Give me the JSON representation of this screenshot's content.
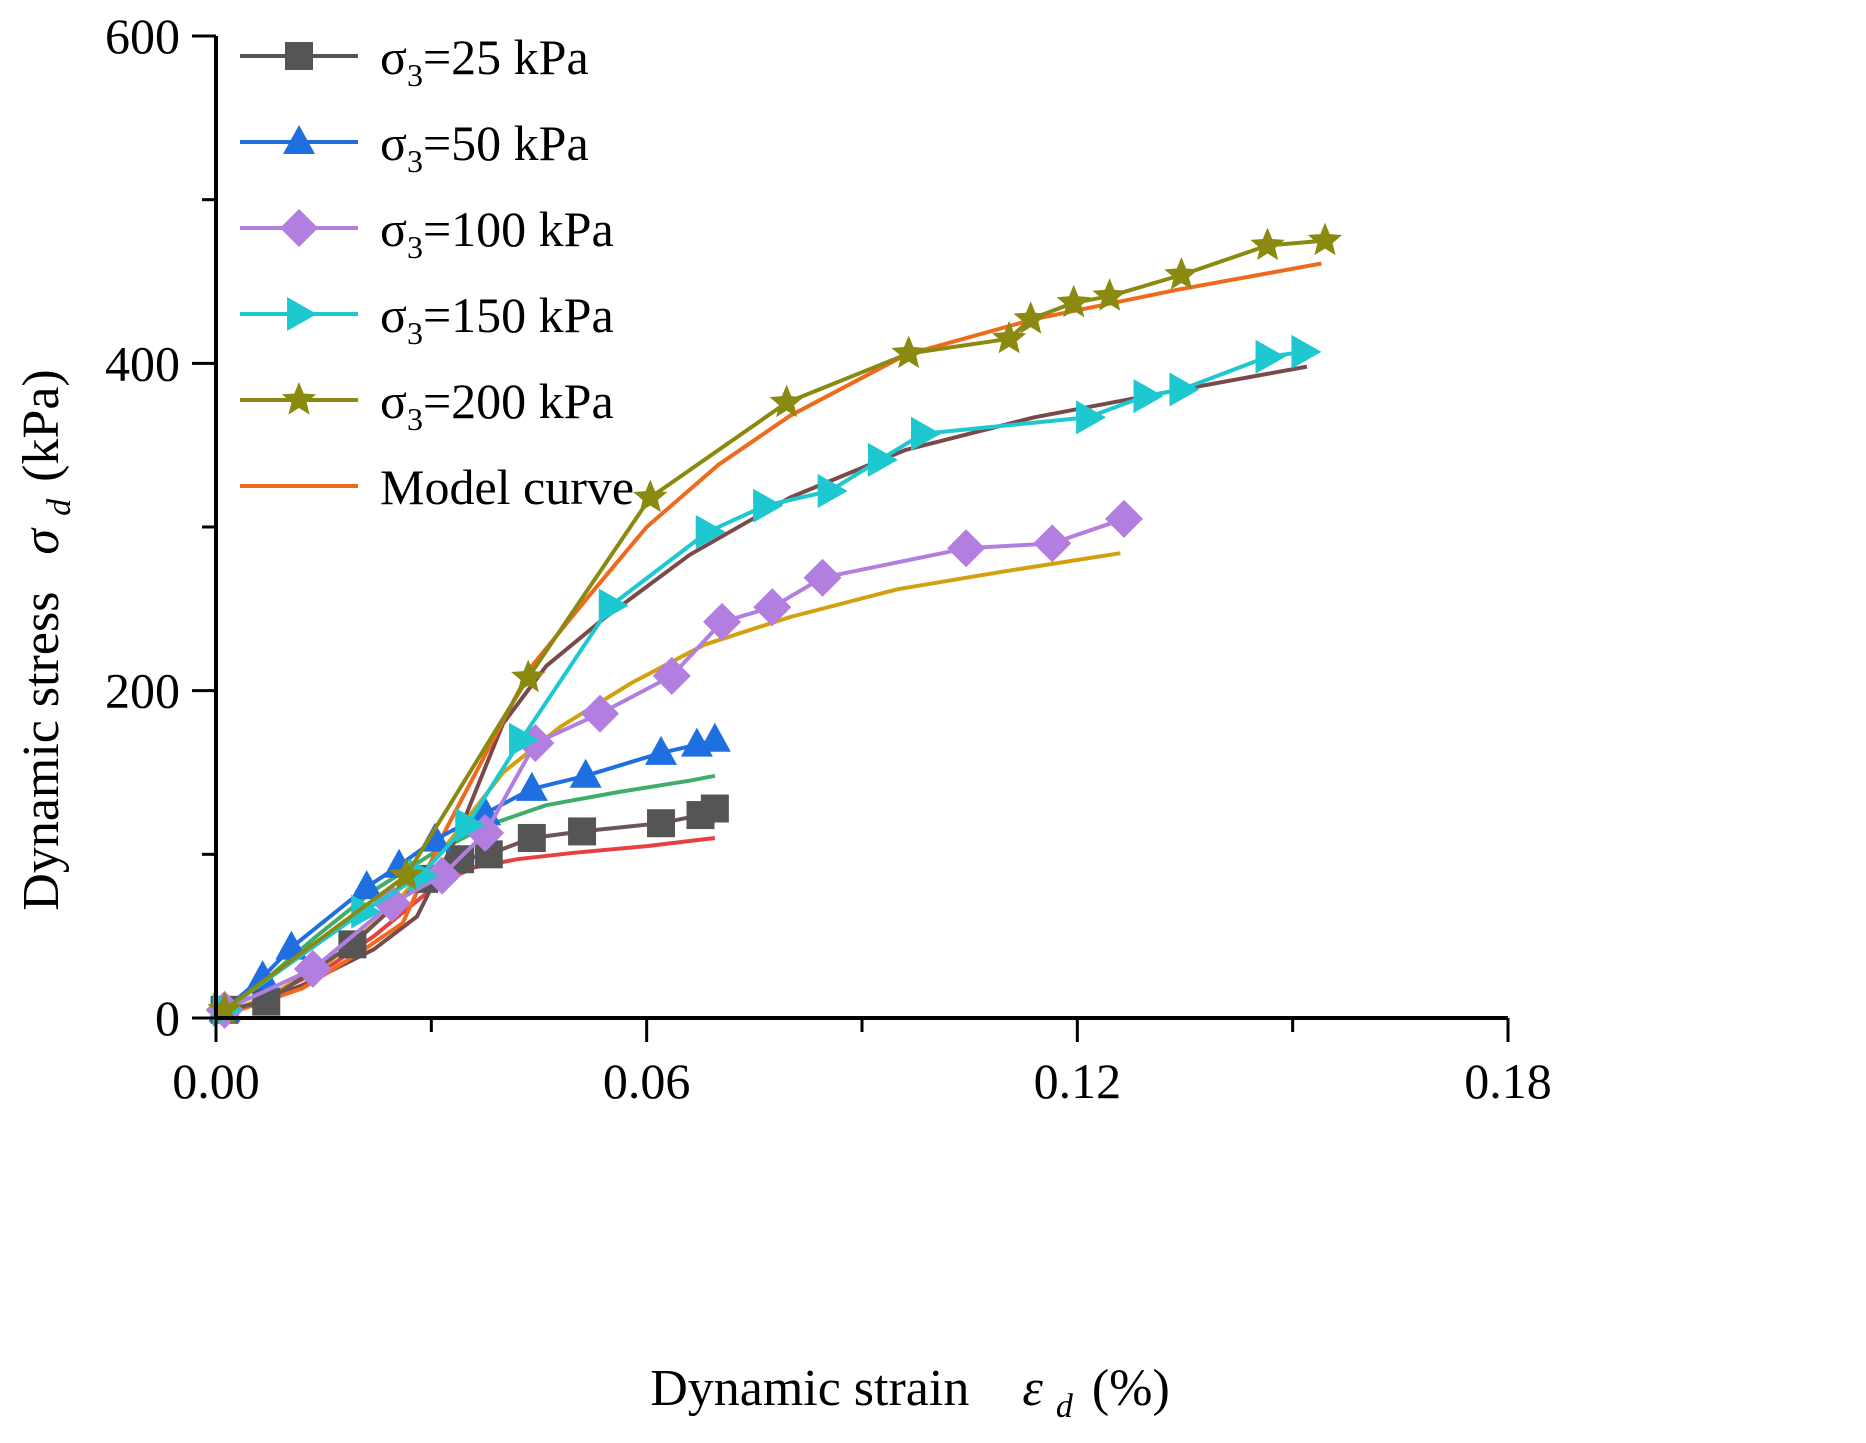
{
  "chart_data": {
    "type": "line",
    "xlabel": "Dynamic strain",
    "xlabel_symbol": "ε",
    "xlabel_sub": "d",
    "xlabel_unit": "(%)",
    "ylabel": "Dynamic stress",
    "ylabel_symbol": "σ",
    "ylabel_sub": "d",
    "ylabel_unit": "(kPa)",
    "xlim": [
      0,
      0.18
    ],
    "ylim": [
      0,
      600
    ],
    "x_ticks": [
      0.0,
      0.06,
      0.12,
      0.18
    ],
    "x_tick_labels": [
      "0.00",
      "0.06",
      "0.12",
      "0.18"
    ],
    "y_ticks": [
      0,
      200,
      400,
      600
    ],
    "y_tick_labels": [
      "0",
      "200",
      "400",
      "600"
    ],
    "grid": false,
    "legend_position": "top-left",
    "legend": [
      {
        "label_pre": "σ",
        "label_sub": "3",
        "label_post": "=25 kPa",
        "color": "#555555",
        "marker": "square"
      },
      {
        "label_pre": "σ",
        "label_sub": "3",
        "label_post": "=50 kPa",
        "color": "#1f6fe0",
        "marker": "triangle-up"
      },
      {
        "label_pre": "σ",
        "label_sub": "3",
        "label_post": "=100 kPa",
        "color": "#b27ee0",
        "marker": "diamond"
      },
      {
        "label_pre": "σ",
        "label_sub": "3",
        "label_post": "=150 kPa",
        "color": "#1ec8d0",
        "marker": "triangle-right"
      },
      {
        "label_pre": "σ",
        "label_sub": "3",
        "label_post": "=200 kPa",
        "color": "#8a8a10",
        "marker": "star"
      },
      {
        "label_pre": "Model curve",
        "label_sub": "",
        "label_post": "",
        "color": "#f06a1e",
        "marker": "none"
      }
    ],
    "series": [
      {
        "name": "σ3=25 kPa",
        "color": "#555555",
        "line_color": "#6e5555",
        "marker": "square",
        "points": [
          [
            0.0012,
            5
          ],
          [
            0.007,
            10
          ],
          [
            0.019,
            45
          ],
          [
            0.029,
            85
          ],
          [
            0.034,
            97
          ],
          [
            0.038,
            100
          ],
          [
            0.044,
            110
          ],
          [
            0.051,
            114
          ],
          [
            0.062,
            119
          ],
          [
            0.0675,
            124
          ],
          [
            0.0695,
            128
          ]
        ]
      },
      {
        "name": "σ3=50 kPa",
        "color": "#1f6fe0",
        "line_color": "#1f6fe0",
        "marker": "triangle-up",
        "points": [
          [
            0.0012,
            5
          ],
          [
            0.0065,
            25
          ],
          [
            0.0105,
            43
          ],
          [
            0.021,
            80
          ],
          [
            0.0255,
            93
          ],
          [
            0.0305,
            109
          ],
          [
            0.0375,
            125
          ],
          [
            0.044,
            140
          ],
          [
            0.0515,
            148
          ],
          [
            0.062,
            162
          ],
          [
            0.067,
            167
          ],
          [
            0.0695,
            170
          ]
        ]
      },
      {
        "name": "σ3=100 kPa",
        "color": "#b27ee0",
        "line_color": "#b27ee0",
        "marker": "diamond",
        "points": [
          [
            0.0012,
            5
          ],
          [
            0.0135,
            30
          ],
          [
            0.0245,
            70
          ],
          [
            0.0315,
            87
          ],
          [
            0.0375,
            113
          ],
          [
            0.0445,
            168
          ],
          [
            0.0535,
            186
          ],
          [
            0.0635,
            209
          ],
          [
            0.0705,
            242
          ],
          [
            0.0775,
            251
          ],
          [
            0.0845,
            269
          ],
          [
            0.1045,
            287
          ],
          [
            0.1165,
            290
          ],
          [
            0.1265,
            305
          ]
        ]
      },
      {
        "name": "σ3=150 kPa",
        "color": "#1ec8d0",
        "line_color": "#1ec8d0",
        "marker": "triangle-right",
        "points": [
          [
            0.0012,
            5
          ],
          [
            0.0205,
            65
          ],
          [
            0.0285,
            87
          ],
          [
            0.035,
            118
          ],
          [
            0.0425,
            170
          ],
          [
            0.055,
            252
          ],
          [
            0.0685,
            297
          ],
          [
            0.0765,
            313
          ],
          [
            0.0855,
            322
          ],
          [
            0.0925,
            341
          ],
          [
            0.0985,
            357
          ],
          [
            0.1215,
            367
          ],
          [
            0.1295,
            380
          ],
          [
            0.1345,
            384
          ],
          [
            0.1465,
            404
          ],
          [
            0.1515,
            407
          ]
        ]
      },
      {
        "name": "σ3=200 kPa",
        "color": "#8a8a10",
        "line_color": "#8a8a10",
        "marker": "star",
        "points": [
          [
            0.0012,
            5
          ],
          [
            0.0265,
            87
          ],
          [
            0.0435,
            208
          ],
          [
            0.0605,
            318
          ],
          [
            0.0795,
            376
          ],
          [
            0.0965,
            406
          ],
          [
            0.1105,
            415
          ],
          [
            0.1135,
            427
          ],
          [
            0.1195,
            437
          ],
          [
            0.1245,
            441
          ],
          [
            0.1345,
            454
          ],
          [
            0.1465,
            472
          ],
          [
            0.1545,
            475
          ]
        ]
      },
      {
        "name": "",
        "color": "#e84040",
        "marker": "none",
        "model": true,
        "points": [
          [
            0.0,
            0
          ],
          [
            0.008,
            15
          ],
          [
            0.016,
            32
          ],
          [
            0.022,
            50
          ],
          [
            0.027,
            68
          ],
          [
            0.031,
            82
          ],
          [
            0.036,
            92
          ],
          [
            0.042,
            97
          ],
          [
            0.05,
            101
          ],
          [
            0.06,
            105
          ],
          [
            0.0695,
            110
          ]
        ]
      },
      {
        "name": "",
        "color": "#3fae6a",
        "marker": "none",
        "model": true,
        "points": [
          [
            0.0,
            0
          ],
          [
            0.006,
            20
          ],
          [
            0.014,
            50
          ],
          [
            0.022,
            78
          ],
          [
            0.03,
            100
          ],
          [
            0.038,
            118
          ],
          [
            0.046,
            130
          ],
          [
            0.056,
            138
          ],
          [
            0.066,
            145
          ],
          [
            0.0695,
            148
          ]
        ]
      },
      {
        "name": "",
        "color": "#d4a010",
        "marker": "none",
        "model": true,
        "points": [
          [
            0.0,
            0
          ],
          [
            0.008,
            15
          ],
          [
            0.016,
            35
          ],
          [
            0.024,
            65
          ],
          [
            0.032,
            105
          ],
          [
            0.04,
            150
          ],
          [
            0.048,
            178
          ],
          [
            0.058,
            205
          ],
          [
            0.068,
            228
          ],
          [
            0.08,
            245
          ],
          [
            0.095,
            262
          ],
          [
            0.11,
            273
          ],
          [
            0.126,
            284
          ]
        ]
      },
      {
        "name": "",
        "color": "#7a4a4a",
        "marker": "none",
        "model": true,
        "points": [
          [
            0.0,
            0
          ],
          [
            0.012,
            20
          ],
          [
            0.022,
            42
          ],
          [
            0.028,
            62
          ],
          [
            0.034,
            115
          ],
          [
            0.04,
            180
          ],
          [
            0.046,
            215
          ],
          [
            0.054,
            244
          ],
          [
            0.066,
            283
          ],
          [
            0.08,
            318
          ],
          [
            0.096,
            347
          ],
          [
            0.114,
            367
          ],
          [
            0.132,
            382
          ],
          [
            0.152,
            398
          ]
        ]
      },
      {
        "name": "",
        "color": "#f06a1e",
        "marker": "none",
        "model": true,
        "points": [
          [
            0.0,
            0
          ],
          [
            0.012,
            18
          ],
          [
            0.02,
            40
          ],
          [
            0.026,
            58
          ],
          [
            0.032,
            115
          ],
          [
            0.038,
            165
          ],
          [
            0.044,
            215
          ],
          [
            0.052,
            258
          ],
          [
            0.06,
            300
          ],
          [
            0.07,
            338
          ],
          [
            0.08,
            368
          ],
          [
            0.096,
            405
          ],
          [
            0.114,
            427
          ],
          [
            0.134,
            445
          ],
          [
            0.154,
            461
          ]
        ]
      }
    ]
  }
}
